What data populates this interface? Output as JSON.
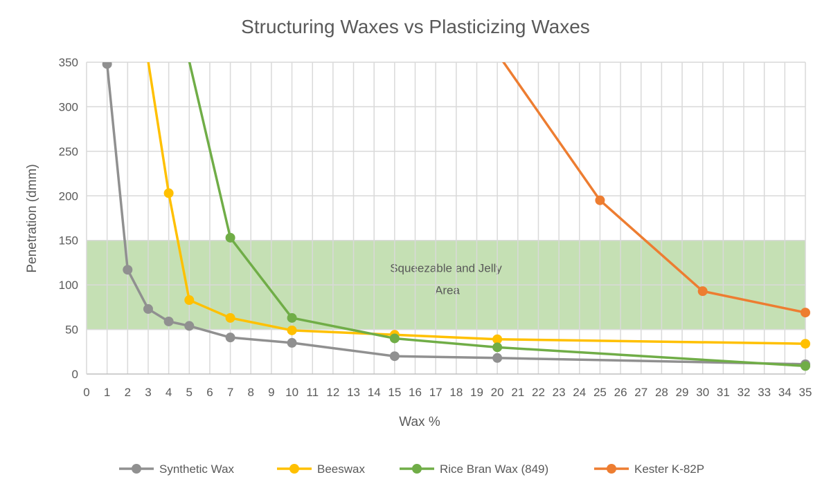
{
  "chart_data": {
    "type": "line",
    "title": "Structuring Waxes vs Plasticizing Waxes",
    "xlabel": "Wax %",
    "ylabel": "Penetration (dmm)",
    "xlim": [
      0,
      35
    ],
    "ylim": [
      0,
      350
    ],
    "xticks": [
      0,
      1,
      2,
      3,
      4,
      5,
      6,
      7,
      8,
      9,
      10,
      11,
      12,
      13,
      14,
      15,
      16,
      17,
      18,
      19,
      20,
      21,
      22,
      23,
      24,
      25,
      26,
      27,
      28,
      29,
      30,
      31,
      32,
      33,
      34,
      35
    ],
    "yticks": [
      0,
      50,
      100,
      150,
      200,
      250,
      300,
      350
    ],
    "grid": true,
    "legend_position": "bottom",
    "band": {
      "y_from": 50,
      "y_to": 150,
      "label_line1": "Squeezable and Jelly",
      "label_line2": "Area",
      "color": "#c5e0b4"
    },
    "series": [
      {
        "name": "Synthetic Wax",
        "color": "#909090",
        "x": [
          1,
          2,
          3,
          4,
          5,
          7,
          10,
          15,
          20,
          35
        ],
        "y": [
          348,
          117,
          73,
          59,
          54,
          41,
          35,
          20,
          18,
          11
        ]
      },
      {
        "name": "Beeswax",
        "color": "#ffc000",
        "x": [
          3,
          4,
          5,
          7,
          10,
          15,
          20,
          35
        ],
        "y": [
          351,
          203,
          83,
          63,
          49,
          44,
          39,
          34
        ]
      },
      {
        "name": "Rice Bran Wax (849)",
        "color": "#70ad47",
        "x": [
          5,
          7,
          10,
          15,
          20,
          35
        ],
        "y": [
          351,
          153,
          63,
          40,
          30,
          9
        ]
      },
      {
        "name": "Kester K-82P",
        "color": "#ed7d31",
        "x": [
          20,
          25,
          30,
          35
        ],
        "y": [
          360,
          195,
          93,
          69
        ]
      }
    ]
  }
}
